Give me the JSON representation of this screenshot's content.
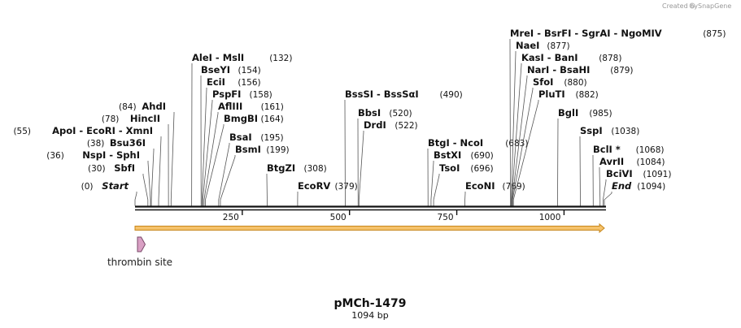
{
  "credit": {
    "text": "Created by",
    "brand": "SnapGene"
  },
  "map": {
    "title": "pMCh-1479",
    "length_label": "1094 bp",
    "length_bp": 1094,
    "ticks": [
      "250",
      "500",
      "750",
      "1000"
    ],
    "tick_values": [
      250,
      500,
      750,
      1000
    ]
  },
  "features": [
    {
      "name": "orange-arrow",
      "start": 1,
      "end": 1094,
      "color": "#f5c26b",
      "stroke": "#c8871a"
    },
    {
      "name": "thrombin site",
      "start": 1,
      "end": 18,
      "color": "#d9a0c4",
      "stroke": "#7a4a6a"
    }
  ],
  "sites": [
    {
      "label": "Start",
      "pos": 0,
      "italic": true
    },
    {
      "label": "SbfI",
      "pos": 30
    },
    {
      "label": "NspI  - SphI",
      "pos": 36
    },
    {
      "label": "Bsu36I",
      "pos": 38
    },
    {
      "label": "ApoI  - EcoRI - XmnI",
      "pos": 55
    },
    {
      "label": "HincII",
      "pos": 78
    },
    {
      "label": "AhdI",
      "pos": 84
    },
    {
      "label": "AleI  - MslI",
      "pos": 132
    },
    {
      "label": "BseYI",
      "pos": 154
    },
    {
      "label": "EciI",
      "pos": 156
    },
    {
      "label": "PspFI",
      "pos": 158
    },
    {
      "label": "AflIII",
      "pos": 161
    },
    {
      "label": "BmgBI",
      "pos": 164
    },
    {
      "label": "BsaI",
      "pos": 195
    },
    {
      "label": "BsmI",
      "pos": 199
    },
    {
      "label": "BtgZI",
      "pos": 308
    },
    {
      "label": "EcoRV",
      "pos": 379
    },
    {
      "label": "BssSI  - BssSαI",
      "pos": 490
    },
    {
      "label": "BbsI",
      "pos": 520
    },
    {
      "label": "DrdI",
      "pos": 522
    },
    {
      "label": "BtgI  - NcoI",
      "pos": 683
    },
    {
      "label": "BstXI",
      "pos": 690
    },
    {
      "label": "TsoI",
      "pos": 696
    },
    {
      "label": "EcoNI",
      "pos": 769
    },
    {
      "label": "MreI  - BsrFI  - SgrAI  - NgoMIV",
      "pos": 875
    },
    {
      "label": "NaeI",
      "pos": 877
    },
    {
      "label": "KasI  - BanI",
      "pos": 878
    },
    {
      "label": "NarI  - BsaHI",
      "pos": 879
    },
    {
      "label": "SfoI",
      "pos": 880
    },
    {
      "label": "PluTI",
      "pos": 882
    },
    {
      "label": "BglI",
      "pos": 985
    },
    {
      "label": "SspI",
      "pos": 1038
    },
    {
      "label": "BclI *",
      "pos": 1068
    },
    {
      "label": "AvrII",
      "pos": 1084
    },
    {
      "label": "BciVI",
      "pos": 1091
    },
    {
      "label": "End",
      "pos": 1094,
      "italic": true
    }
  ],
  "feature_label": "thrombin site"
}
